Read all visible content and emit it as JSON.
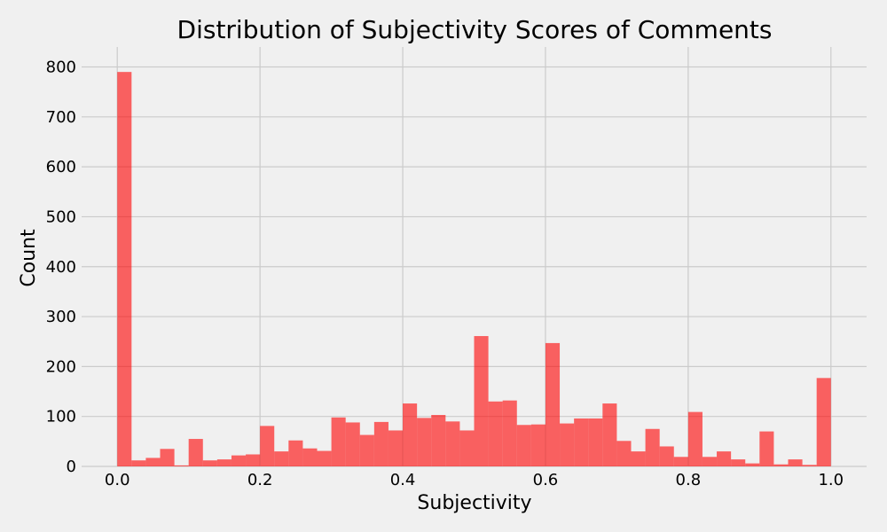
{
  "chart_data": {
    "type": "bar",
    "title": "Distribution of Subjectivity Scores of Comments",
    "xlabel": "Subjectivity",
    "ylabel": "Count",
    "xlim": [
      -0.05,
      1.05
    ],
    "ylim": [
      0,
      840
    ],
    "xticks": [
      0.0,
      0.2,
      0.4,
      0.6,
      0.8,
      1.0
    ],
    "xtick_labels": [
      "0.0",
      "0.2",
      "0.4",
      "0.6",
      "0.8",
      "1.0"
    ],
    "yticks": [
      0,
      100,
      200,
      300,
      400,
      500,
      600,
      700,
      800
    ],
    "ytick_labels": [
      "0",
      "100",
      "200",
      "300",
      "400",
      "500",
      "600",
      "700",
      "800"
    ],
    "grid": true,
    "bin_start": 0.0,
    "bin_width": 0.02,
    "values": [
      790,
      12,
      17,
      35,
      2,
      55,
      12,
      14,
      22,
      24,
      81,
      30,
      52,
      36,
      31,
      98,
      88,
      63,
      89,
      72,
      126,
      97,
      103,
      90,
      72,
      261,
      130,
      132,
      83,
      84,
      247,
      86,
      96,
      96,
      126,
      51,
      30,
      75,
      40,
      19,
      109,
      19,
      30,
      14,
      6,
      70,
      4,
      14,
      3,
      177
    ],
    "color": "#ff0000"
  }
}
